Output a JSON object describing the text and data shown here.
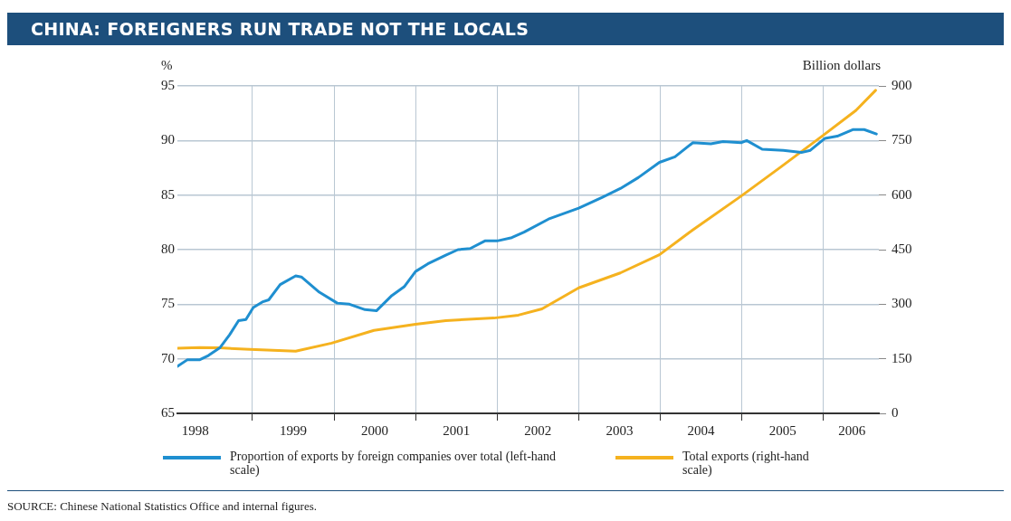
{
  "chart_data": {
    "type": "line",
    "title": "CHINA: FOREIGNERS RUN TRADE NOT THE LOCALS",
    "ylabel": "%",
    "y2label": "Billion dollars",
    "annotations": [
      "SOURCE: Chinese National Statistics Office and internal figures."
    ],
    "xlim": [
      1998.08,
      2006.68
    ],
    "xticks": [
      {
        "value": 1998.3,
        "label": "1998"
      },
      {
        "value": 1999,
        "label": null
      },
      {
        "value": 1999.5,
        "label": "1999"
      },
      {
        "value": 2000,
        "label": null
      },
      {
        "value": 2000.5,
        "label": "2000"
      },
      {
        "value": 2001,
        "label": null
      },
      {
        "value": 2001.5,
        "label": "2001"
      },
      {
        "value": 2002,
        "label": null
      },
      {
        "value": 2002.5,
        "label": "2002"
      },
      {
        "value": 2003,
        "label": null
      },
      {
        "value": 2003.5,
        "label": "2003"
      },
      {
        "value": 2004,
        "label": null
      },
      {
        "value": 2004.5,
        "label": "2004"
      },
      {
        "value": 2005,
        "label": null
      },
      {
        "value": 2005.5,
        "label": "2005"
      },
      {
        "value": 2006,
        "label": null
      },
      {
        "value": 2006.35,
        "label": "2006"
      }
    ],
    "ylim": [
      65,
      95
    ],
    "yticks": [
      65,
      70,
      75,
      80,
      85,
      90,
      95
    ],
    "y2lim": [
      0,
      900
    ],
    "y2ticks": [
      0,
      150,
      300,
      450,
      600,
      750,
      900
    ],
    "grid": true,
    "legend": "bottom",
    "marker": "none",
    "line_style": "solid",
    "series": [
      {
        "name": "Proportion of exports by foreign companies over total (left-hand scale)",
        "color": "#1f8fd0",
        "axis": "y",
        "x": [
          1998.08,
          1998.2,
          1998.35,
          1998.46,
          1998.6,
          1998.72,
          1998.83,
          1998.92,
          1999.01,
          1999.12,
          1999.2,
          1999.34,
          1999.53,
          1999.6,
          1999.82,
          2000.04,
          2000.19,
          2000.38,
          2000.52,
          2000.71,
          2000.86,
          2001.0,
          2001.15,
          2001.37,
          2001.52,
          2001.67,
          2001.85,
          2002.0,
          2002.18,
          2002.33,
          2002.63,
          2003.0,
          2003.29,
          2003.51,
          2003.73,
          2003.99,
          2004.18,
          2004.4,
          2004.62,
          2004.77,
          2004.99,
          2005.06,
          2005.25,
          2005.51,
          2005.73,
          2005.84,
          2006.02,
          2006.17,
          2006.36,
          2006.5,
          2006.65
        ],
        "values": [
          69.3,
          69.9,
          69.9,
          70.3,
          71.0,
          72.2,
          73.5,
          73.6,
          74.7,
          75.2,
          75.4,
          76.8,
          77.6,
          77.5,
          76.1,
          75.1,
          75.0,
          74.5,
          74.4,
          75.8,
          76.6,
          78.0,
          78.7,
          79.5,
          80.0,
          80.1,
          80.8,
          80.8,
          81.1,
          81.6,
          82.8,
          83.8,
          84.8,
          85.6,
          86.6,
          88.0,
          88.5,
          89.8,
          89.7,
          89.9,
          89.8,
          90.0,
          89.2,
          89.1,
          88.9,
          89.1,
          90.2,
          90.4,
          91.0,
          91.0,
          90.6
        ]
      },
      {
        "name": "Total exports (right-hand scale)",
        "color": "#f5b21f",
        "axis": "y2",
        "x": [
          1998.08,
          1998.35,
          1998.6,
          1998.97,
          1999.53,
          1999.97,
          2000.49,
          2001.0,
          2001.37,
          2001.96,
          2002.26,
          2002.55,
          2003.0,
          2003.51,
          2003.99,
          2004.36,
          2004.99,
          2005.47,
          2005.99,
          2006.4,
          2006.64
        ],
        "values": [
          179,
          181,
          180,
          176,
          171,
          193,
          228,
          245,
          255,
          262,
          270,
          287,
          345,
          386,
          436,
          498,
          597,
          676,
          763,
          833,
          888
        ]
      }
    ]
  }
}
